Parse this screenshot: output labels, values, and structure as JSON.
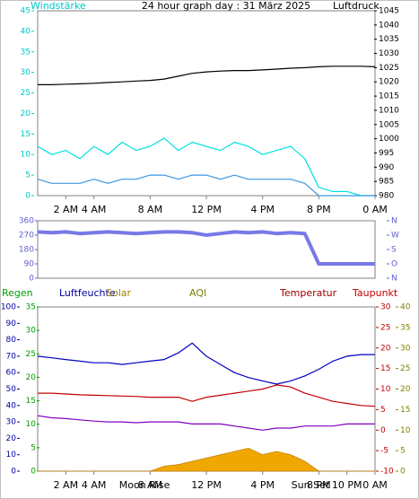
{
  "chart_data": [
    {
      "type": "line",
      "title": "24 hour graph day : 31 März 2025",
      "ylabel": "Windstärke",
      "y2label": "Luftdruck",
      "x": [
        0,
        1,
        2,
        3,
        4,
        5,
        6,
        7,
        8,
        9,
        10,
        11,
        12,
        13,
        14,
        15,
        16,
        17,
        18,
        19,
        20,
        21,
        22,
        23,
        24
      ],
      "xlim": [
        0,
        24
      ],
      "xticks": [
        {
          "value": 2,
          "label": "2 AM"
        },
        {
          "value": 4,
          "label": "4 AM"
        },
        {
          "value": 8,
          "label": "8 AM"
        },
        {
          "value": 12,
          "label": "12 PM"
        },
        {
          "value": 16,
          "label": "4 PM"
        },
        {
          "value": 20,
          "label": "8 PM"
        },
        {
          "value": 24,
          "label": "0 AM"
        }
      ],
      "ylim": [
        0,
        45
      ],
      "yticks": [
        0,
        5,
        10,
        15,
        20,
        25,
        30,
        35,
        40,
        45
      ],
      "ycolor": "#00c8c8",
      "y2lim": [
        980,
        1045
      ],
      "y2ticks": [
        980,
        985,
        990,
        995,
        1000,
        1005,
        1010,
        1015,
        1020,
        1025,
        1030,
        1035,
        1040,
        1045
      ],
      "y2color": "#000000",
      "series": [
        {
          "color": "#00e0e0",
          "values": [
            12,
            10,
            11,
            9,
            12,
            10,
            13,
            11,
            12,
            14,
            11,
            13,
            12,
            11,
            13,
            12,
            10,
            11,
            12,
            9,
            2,
            1,
            1,
            0,
            0
          ]
        },
        {
          "color": "#3c96e0",
          "values": [
            4,
            3,
            3,
            3,
            4,
            3,
            4,
            4,
            5,
            5,
            4,
            5,
            5,
            4,
            5,
            4,
            4,
            4,
            4,
            3,
            0,
            0,
            0,
            0,
            0
          ]
        },
        {
          "color": "#000000",
          "axis": "y2",
          "values": [
            1019,
            1019,
            1019.2,
            1019.3,
            1019.5,
            1019.8,
            1020,
            1020.3,
            1020.5,
            1021,
            1022,
            1023,
            1023.5,
            1023.8,
            1024,
            1024,
            1024.2,
            1024.5,
            1024.8,
            1025,
            1025.3,
            1025.5,
            1025.5,
            1025.5,
            1025.3
          ]
        }
      ]
    },
    {
      "type": "line",
      "x": [
        0,
        1,
        2,
        3,
        4,
        5,
        6,
        7,
        8,
        9,
        10,
        11,
        12,
        13,
        14,
        15,
        16,
        17,
        18,
        19,
        20,
        21,
        22,
        23,
        24
      ],
      "xlim": [
        0,
        24
      ],
      "ylim": [
        0,
        360
      ],
      "yticks": [
        0,
        90,
        180,
        270,
        360
      ],
      "ycolor": "#6060d0",
      "y2lim": [
        0,
        360
      ],
      "y2ticks": [
        {
          "value": 0,
          "label": "N"
        },
        {
          "value": 90,
          "label": "O"
        },
        {
          "value": 180,
          "label": "S"
        },
        {
          "value": 270,
          "label": "W"
        },
        {
          "value": 360,
          "label": "N"
        }
      ],
      "y2color": "#6060d0",
      "series": [
        {
          "color": "#7878e8",
          "width": 4,
          "values": [
            290,
            285,
            290,
            280,
            285,
            290,
            285,
            280,
            285,
            290,
            290,
            285,
            270,
            280,
            290,
            285,
            290,
            280,
            285,
            280,
            90,
            90,
            90,
            90,
            90
          ]
        }
      ]
    },
    {
      "type": "line",
      "y3label": "Regen",
      "note": "AQI",
      "x": [
        0,
        1,
        2,
        3,
        4,
        5,
        6,
        7,
        8,
        9,
        10,
        11,
        12,
        13,
        14,
        15,
        16,
        17,
        18,
        19,
        20,
        21,
        22,
        23,
        24
      ],
      "xlim": [
        0,
        24
      ],
      "xticks": [
        {
          "value": 2,
          "label": "2 AM"
        },
        {
          "value": 4,
          "label": "4 AM"
        },
        {
          "value": 8,
          "label": "8 AM"
        },
        {
          "value": 12,
          "label": "12 PM"
        },
        {
          "value": 16,
          "label": "4 PM"
        },
        {
          "value": 20,
          "label": "8 PM"
        },
        {
          "value": 22,
          "label": "10 PM"
        },
        {
          "value": 24,
          "label": "0 AM"
        }
      ],
      "annotations": [
        {
          "text": "Moon Rise",
          "x": 7.6
        },
        {
          "text": "Sun Set",
          "x": 19.4
        }
      ],
      "ylim": [
        0,
        100
      ],
      "yticks": [
        0,
        10,
        20,
        30,
        40,
        50,
        60,
        70,
        80,
        90,
        100
      ],
      "ycolor": "#0000a0",
      "y2lim": [
        -10,
        30
      ],
      "y2ticks": [
        -10,
        -5,
        0,
        5,
        10,
        15,
        20,
        25,
        30
      ],
      "y2color": "#c00000",
      "y3lim": [
        0,
        35
      ],
      "y3ticks": [
        0,
        5,
        10,
        15,
        20,
        25,
        30,
        35
      ],
      "y3color": "#00a000",
      "y4lim": [
        0,
        40
      ],
      "y4ticks": [
        0,
        5,
        10,
        15,
        20,
        25,
        30,
        35,
        40
      ],
      "y4color": "#808000",
      "series": [
        {
          "name": "Solar",
          "color": "#f0a800",
          "style": "area",
          "values": [
            0,
            0,
            0,
            0,
            0,
            0,
            0,
            0,
            0,
            3,
            4,
            6,
            8,
            10,
            12,
            14,
            10,
            12,
            10,
            6,
            0,
            0,
            0,
            0,
            0
          ]
        },
        {
          "name": "Luftfeuchte",
          "color": "#0000c0",
          "values": [
            70,
            69,
            68,
            67,
            66,
            66,
            65,
            66,
            67,
            68,
            72,
            78,
            70,
            65,
            60,
            57,
            55,
            53,
            55,
            58,
            62,
            67,
            70,
            71,
            71
          ]
        },
        {
          "name": "Temperatur",
          "color": "#c00000",
          "axis": "y2",
          "values": [
            9,
            9,
            8.8,
            8.6,
            8.5,
            8.4,
            8.3,
            8.2,
            8,
            8,
            8,
            7,
            8,
            8.5,
            9,
            9.5,
            10,
            11,
            10.5,
            9,
            8,
            7,
            6.5,
            6,
            5.8
          ]
        },
        {
          "name": "Taupunkt",
          "color": "#8000c0",
          "axis": "y2",
          "values": [
            3.5,
            3,
            2.8,
            2.5,
            2.2,
            2,
            2,
            1.8,
            2,
            2,
            2,
            1.5,
            1.5,
            1.5,
            1,
            0.5,
            0,
            0.5,
            0.5,
            1,
            1,
            1,
            1.5,
            1.5,
            1.5
          ]
        }
      ]
    }
  ]
}
